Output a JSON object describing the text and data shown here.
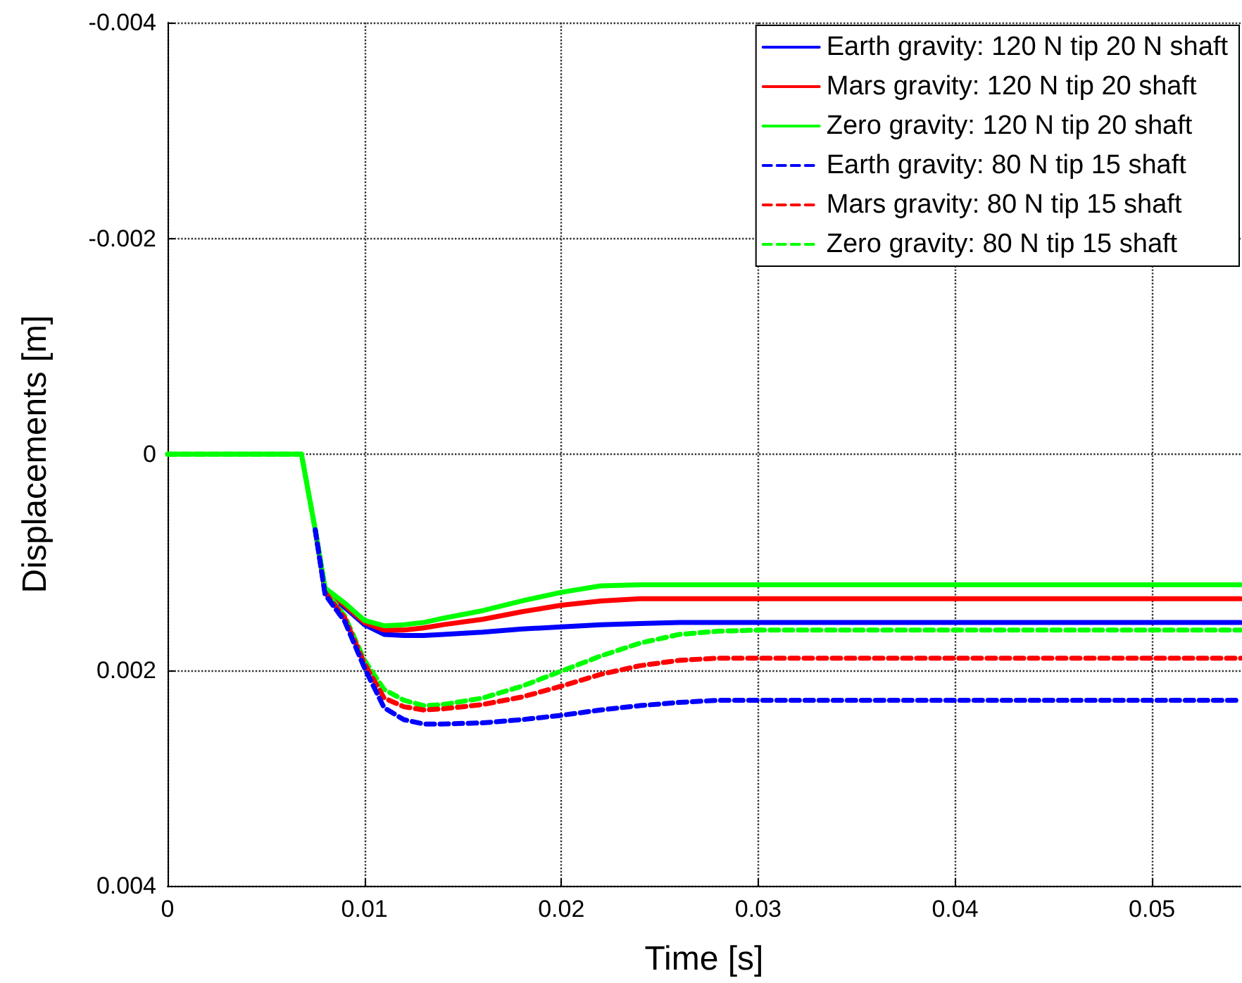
{
  "chart_data": {
    "type": "line",
    "xlabel": "Time [s]",
    "ylabel": "Displacements [m]",
    "x": [
      0,
      0.0068,
      0.0075,
      0.008,
      0.009,
      0.01,
      0.011,
      0.012,
      0.013,
      0.014,
      0.016,
      0.018,
      0.02,
      0.022,
      0.024,
      0.026,
      0.028,
      0.03,
      0.0545
    ],
    "series": [
      {
        "name": "Earth gravity: 120 N tip 20 N shaft",
        "color": "#0000ff",
        "line_style": "solid",
        "values": [
          null,
          null,
          0.0007,
          0.00128,
          0.00142,
          0.00158,
          0.00167,
          0.00168,
          0.00168,
          0.00167,
          0.00165,
          0.00162,
          0.0016,
          0.00158,
          0.00157,
          0.00156,
          0.00156,
          0.00156,
          0.00156
        ]
      },
      {
        "name": "Mars gravity: 120 N tip 20 shaft",
        "color": "#ff0000",
        "line_style": "solid",
        "values": [
          null,
          null,
          0.0007,
          0.00126,
          0.0014,
          0.00156,
          0.00163,
          0.00163,
          0.00161,
          0.00158,
          0.00153,
          0.00146,
          0.0014,
          0.00136,
          0.00134,
          0.00134,
          0.00134,
          0.00134,
          0.00134
        ]
      },
      {
        "name": "Zero gravity: 120 N tip 20 shaft",
        "color": "#00ff00",
        "line_style": "solid",
        "values": [
          0,
          0,
          0.0007,
          0.00124,
          0.00138,
          0.00154,
          0.00159,
          0.00158,
          0.00156,
          0.00152,
          0.00145,
          0.00136,
          0.00128,
          0.00122,
          0.00121,
          0.00121,
          0.00121,
          0.00121,
          0.00121
        ]
      },
      {
        "name": "Earth gravity: 80 N tip 15 shaft",
        "color": "#0000ff",
        "line_style": "dashed",
        "values": [
          null,
          null,
          0.0007,
          0.0013,
          0.00155,
          0.00198,
          0.00235,
          0.00246,
          0.0025,
          0.0025,
          0.00249,
          0.00246,
          0.00242,
          0.00237,
          0.00233,
          0.0023,
          0.00228,
          0.00228,
          0.00228
        ]
      },
      {
        "name": "Mars gravity: 80 N tip 15 shaft",
        "color": "#ff0000",
        "line_style": "dashed",
        "values": [
          null,
          null,
          null,
          0.00128,
          0.00152,
          0.00194,
          0.00226,
          0.00234,
          0.00237,
          0.00236,
          0.00232,
          0.00225,
          0.00215,
          0.00204,
          0.00196,
          0.00191,
          0.00189,
          0.00189,
          0.00189
        ]
      },
      {
        "name": "Zero gravity: 80 N tip 15 shaft",
        "color": "#00ff00",
        "line_style": "dashed",
        "values": [
          0,
          0,
          0.0007,
          0.00126,
          0.0015,
          0.00191,
          0.00218,
          0.00228,
          0.00233,
          0.00232,
          0.00226,
          0.00215,
          0.00201,
          0.00187,
          0.00175,
          0.00167,
          0.00164,
          0.00163,
          0.00163
        ]
      }
    ],
    "xlim": [
      0,
      0.0545
    ],
    "xticks": [
      0,
      0.01,
      0.02,
      0.03,
      0.04,
      0.05
    ],
    "ylim": [
      0.004,
      -0.004
    ],
    "yticks": [
      -0.004,
      -0.002,
      0,
      0.002,
      0.004
    ],
    "grid": true,
    "legend": "top right",
    "marker": "none"
  }
}
